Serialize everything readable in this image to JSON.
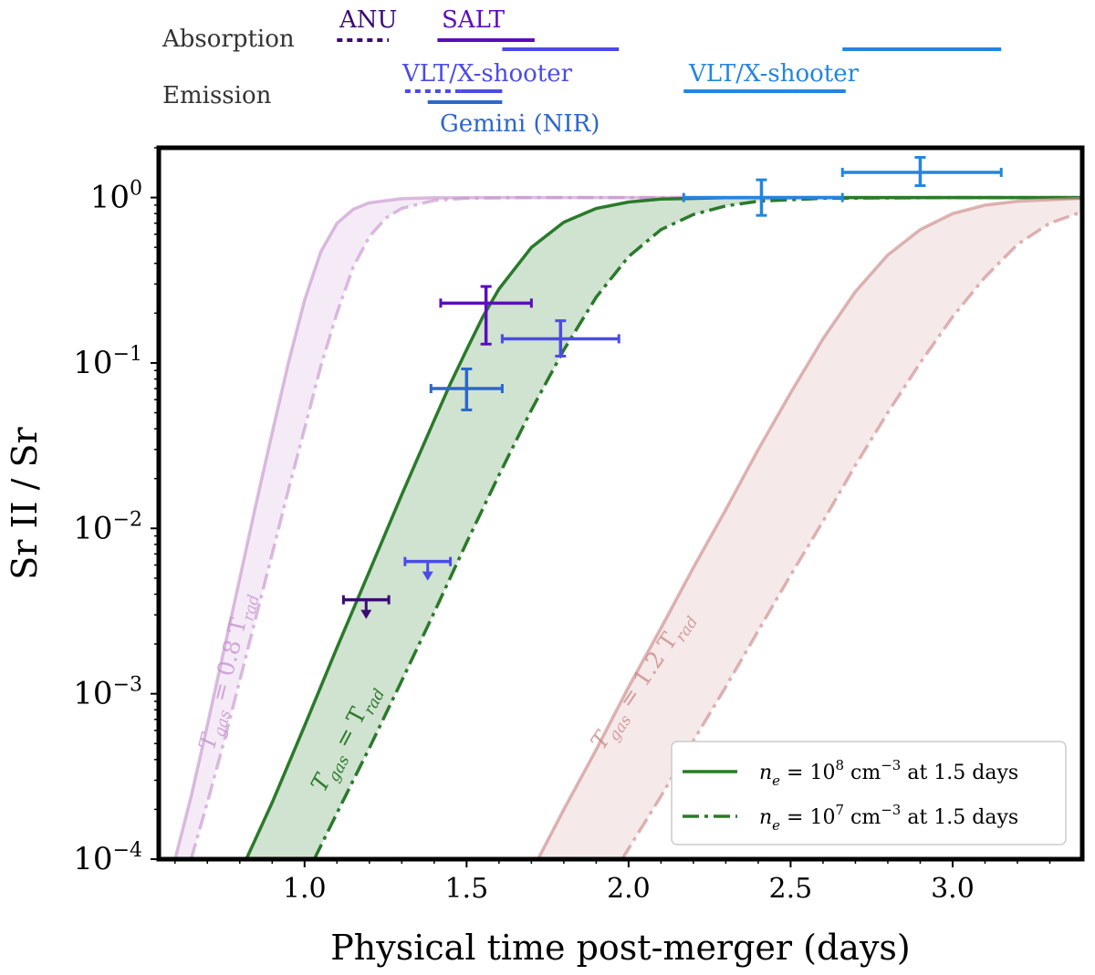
{
  "chart_data": {
    "type": "line",
    "xlabel": "Physical time post-merger (days)",
    "ylabel": "Sr II / Sr",
    "xlim": [
      0.55,
      3.4
    ],
    "ylim": [
      0.0001,
      2.0
    ],
    "yscale": "log",
    "xticks": [
      {
        "value": 1.0,
        "label": "1.0"
      },
      {
        "value": 1.5,
        "label": "1.5"
      },
      {
        "value": 2.0,
        "label": "2.0"
      },
      {
        "value": 2.5,
        "label": "2.5"
      },
      {
        "value": 3.0,
        "label": "3.0"
      }
    ],
    "yticks": [
      {
        "value": 1,
        "base": "10",
        "exp": "0"
      },
      {
        "value": 0.1,
        "base": "10",
        "exp": "−1"
      },
      {
        "value": 0.01,
        "base": "10",
        "exp": "−2"
      },
      {
        "value": 0.001,
        "base": "10",
        "exp": "−3"
      },
      {
        "value": 0.0001,
        "base": "10",
        "exp": "−4"
      }
    ],
    "bands": [
      {
        "name": "Tgas = 0.8 Trad",
        "label_pre": "T",
        "label_sub1": "gas",
        "label_mid": " = 0.8 T",
        "label_sub2": "rad",
        "color": "#c48fcc",
        "label_at": [
          0.72,
          0.00045
        ],
        "label_angle": -76,
        "solid_x": [
          0.6,
          0.65,
          0.7,
          0.75,
          0.8,
          0.85,
          0.9,
          0.95,
          1.0,
          1.05,
          1.1,
          1.15,
          1.2,
          1.3,
          1.4,
          1.6,
          2.0,
          3.4
        ],
        "solid_y": [
          0.0001,
          0.00024,
          0.00065,
          0.0018,
          0.005,
          0.014,
          0.038,
          0.1,
          0.24,
          0.47,
          0.7,
          0.85,
          0.93,
          0.985,
          0.997,
          1.0,
          1.0,
          1.0
        ],
        "dashed_x": [
          0.65,
          0.7,
          0.75,
          0.8,
          0.85,
          0.9,
          0.95,
          1.0,
          1.05,
          1.1,
          1.15,
          1.2,
          1.25,
          1.3,
          1.4,
          1.5,
          1.7,
          2.0,
          3.4
        ],
        "dashed_y": [
          0.0001,
          0.00022,
          0.0005,
          0.0012,
          0.0029,
          0.007,
          0.017,
          0.04,
          0.095,
          0.2,
          0.38,
          0.58,
          0.75,
          0.86,
          0.96,
          0.99,
          1.0,
          1.0,
          1.0
        ]
      },
      {
        "name": "Tgas = Trad",
        "label_pre": "T",
        "label_sub1": "gas",
        "label_mid": " = T",
        "label_sub2": "rad",
        "color": "#2a7a2a",
        "label_at": [
          1.06,
          0.00025
        ],
        "label_angle": -62,
        "solid_x": [
          0.82,
          0.9,
          1.0,
          1.1,
          1.2,
          1.3,
          1.4,
          1.45,
          1.5,
          1.55,
          1.6,
          1.7,
          1.8,
          1.9,
          2.0,
          2.1,
          2.3,
          2.6,
          3.4
        ],
        "solid_y": [
          0.0001,
          0.00022,
          0.00064,
          0.0019,
          0.0055,
          0.016,
          0.045,
          0.075,
          0.12,
          0.19,
          0.28,
          0.5,
          0.71,
          0.86,
          0.94,
          0.98,
          0.997,
          1.0,
          1.0
        ],
        "dashed_x": [
          1.03,
          1.1,
          1.2,
          1.3,
          1.4,
          1.5,
          1.6,
          1.7,
          1.8,
          1.9,
          2.0,
          2.1,
          2.2,
          2.3,
          2.4,
          2.6,
          3.0,
          3.4
        ],
        "dashed_y": [
          0.0001,
          0.00019,
          0.00047,
          0.0012,
          0.0031,
          0.0082,
          0.021,
          0.052,
          0.12,
          0.25,
          0.44,
          0.64,
          0.79,
          0.89,
          0.95,
          0.99,
          1.0,
          1.0
        ]
      },
      {
        "name": "Tgas = 1.2 Trad",
        "label_pre": "T",
        "label_sub1": "gas",
        "label_mid": " = 1.2 T",
        "label_sub2": "rad",
        "color": "#c98383",
        "label_at": [
          1.92,
          0.00045
        ],
        "label_angle": -56,
        "solid_x": [
          1.72,
          1.8,
          1.9,
          2.0,
          2.1,
          2.2,
          2.3,
          2.4,
          2.5,
          2.6,
          2.7,
          2.8,
          2.9,
          3.0,
          3.1,
          3.2,
          3.4
        ],
        "solid_y": [
          0.0001,
          0.0002,
          0.00046,
          0.0011,
          0.0025,
          0.0058,
          0.013,
          0.03,
          0.066,
          0.14,
          0.27,
          0.45,
          0.64,
          0.8,
          0.9,
          0.95,
          0.99
        ],
        "dashed_x": [
          1.98,
          2.1,
          2.2,
          2.3,
          2.4,
          2.5,
          2.6,
          2.7,
          2.8,
          2.9,
          3.0,
          3.1,
          3.2,
          3.3,
          3.4
        ],
        "dashed_y": [
          0.0001,
          0.00024,
          0.00052,
          0.0011,
          0.0024,
          0.0052,
          0.011,
          0.024,
          0.05,
          0.1,
          0.19,
          0.33,
          0.52,
          0.7,
          0.82
        ]
      }
    ],
    "points": [
      {
        "name": "SALT",
        "x": 1.56,
        "y": 0.23,
        "xerr": [
          1.42,
          1.7
        ],
        "yerr": [
          0.13,
          0.29
        ],
        "color": "#5a0dbd"
      },
      {
        "name": "VLT/X-shooter",
        "x": 1.79,
        "y": 0.14,
        "xerr": [
          1.61,
          1.97
        ],
        "yerr": [
          0.11,
          0.18
        ],
        "color": "#4b4be6"
      },
      {
        "name": "Gemini (NIR)",
        "x": 1.5,
        "y": 0.07,
        "xerr": [
          1.39,
          1.61
        ],
        "yerr": [
          0.052,
          0.092
        ],
        "color": "#2a68cc"
      },
      {
        "name": "VLT/X-shooter",
        "x": 2.41,
        "y": 1.0,
        "xerr": [
          2.17,
          2.66
        ],
        "yerr": [
          0.78,
          1.28
        ],
        "color": "#2485e0"
      },
      {
        "name": "VLT/X-shooter",
        "x": 2.9,
        "y": 1.42,
        "xerr": [
          2.66,
          3.15
        ],
        "yerr": [
          1.18,
          1.75
        ],
        "color": "#2485e0"
      }
    ],
    "upper_limits": [
      {
        "name": "ANU",
        "x": 1.19,
        "y": 0.0037,
        "xerr": [
          1.12,
          1.26
        ],
        "color": "#3a0b73"
      },
      {
        "name": "VLT/X-shooter",
        "x": 1.38,
        "y": 0.0063,
        "xerr": [
          1.31,
          1.45
        ],
        "color": "#4b4be6"
      }
    ],
    "legend": {
      "placement": "lower-right",
      "entries": [
        {
          "pre": "n",
          "sub": "e",
          "mid": " = 10",
          "sup": "8",
          "post": " cm",
          "sup2": "−3",
          "tail": " at 1.5 days",
          "style": "solid",
          "color": "#2a7a2a"
        },
        {
          "pre": "n",
          "sub": "e",
          "mid": " = 10",
          "sup": "7",
          "post": " cm",
          "sup2": "−3",
          "tail": " at 1.5 days",
          "style": "dashdot",
          "color": "#2a7a2a"
        }
      ]
    },
    "coverage": {
      "row_labels": [
        "Absorption",
        "Emission"
      ],
      "segments": [
        {
          "row": 0,
          "x": [
            1.1,
            1.26
          ],
          "color": "#3a0b73",
          "style": "dotted"
        },
        {
          "row": 0,
          "x": [
            1.41,
            1.71
          ],
          "color": "#5a0dbd",
          "style": "solid"
        },
        {
          "row": 0,
          "x": [
            1.61,
            1.97
          ],
          "color": "#4b4be6",
          "style": "solid"
        },
        {
          "row": 0,
          "x": [
            2.66,
            3.15
          ],
          "color": "#2485e0",
          "style": "solid"
        },
        {
          "row": 1,
          "x": [
            1.31,
            1.48
          ],
          "color": "#4b4be6",
          "style": "dotted"
        },
        {
          "row": 1,
          "x": [
            1.48,
            1.61
          ],
          "color": "#4b4be6",
          "style": "solid"
        },
        {
          "row": 1,
          "x": [
            1.38,
            1.61
          ],
          "color": "#2a68cc",
          "style": "solid"
        },
        {
          "row": 1,
          "x": [
            2.17,
            2.67
          ],
          "color": "#2485e0",
          "style": "solid"
        }
      ],
      "labels": [
        {
          "text": "ANU",
          "color": "#3a0b73"
        },
        {
          "text": "SALT",
          "color": "#5a0dbd"
        },
        {
          "text": "VLT/X-shooter",
          "color": "#4b4be6"
        },
        {
          "text": "VLT/X-shooter",
          "color": "#2485e0"
        },
        {
          "text": "Gemini (NIR)",
          "color": "#2a68cc"
        }
      ]
    }
  }
}
